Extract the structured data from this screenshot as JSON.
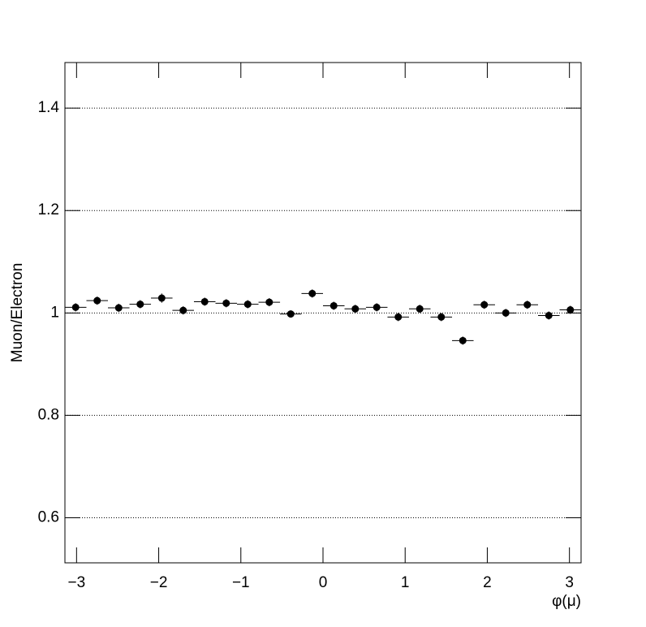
{
  "chart_data": {
    "type": "scatter",
    "xlabel": "φ(μ)",
    "ylabel": "Muon/Electron",
    "x": [
      -3.011,
      -2.749,
      -2.487,
      -2.225,
      -1.963,
      -1.702,
      -1.44,
      -1.178,
      -0.916,
      -0.654,
      -0.393,
      -0.131,
      0.131,
      0.393,
      0.654,
      0.916,
      1.178,
      1.44,
      1.702,
      1.963,
      2.225,
      2.487,
      2.749,
      3.011
    ],
    "values": [
      1.011,
      1.024,
      1.01,
      1.017,
      1.029,
      1.005,
      1.022,
      1.019,
      1.017,
      1.021,
      0.998,
      1.038,
      1.014,
      1.008,
      1.011,
      0.992,
      1.008,
      0.992,
      0.946,
      1.016,
      1.0,
      1.016,
      0.995,
      1.006
    ],
    "errors": [
      0.008,
      0.008,
      0.008,
      0.008,
      0.009,
      0.008,
      0.008,
      0.008,
      0.008,
      0.008,
      0.007,
      0.008,
      0.008,
      0.008,
      0.008,
      0.008,
      0.008,
      0.008,
      0.008,
      0.008,
      0.008,
      0.008,
      0.008,
      0.008
    ],
    "xerr": 0.131,
    "color": "#000000",
    "xlim": [
      -3.1416,
      3.1416
    ],
    "xticks": [
      {
        "value": -3,
        "label": "−3"
      },
      {
        "value": -2,
        "label": "−2"
      },
      {
        "value": -1,
        "label": "−1"
      },
      0,
      1,
      2,
      3
    ],
    "ylim": [
      0.512,
      1.489
    ],
    "yticks": [
      0.6,
      0.8,
      1,
      1.2,
      1.4
    ],
    "grid": true
  }
}
